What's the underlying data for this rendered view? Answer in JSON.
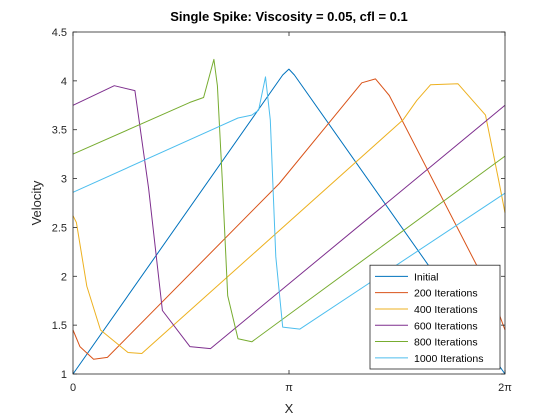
{
  "chart_data": {
    "type": "line",
    "title": "Single Spike: Viscosity = 0.05, cfl = 0.1",
    "xlabel": "X",
    "ylabel": "Velocity",
    "xlim": [
      0,
      6.2832
    ],
    "ylim": [
      1,
      4.5
    ],
    "x_ticks": [
      {
        "value": 0,
        "label": "0"
      },
      {
        "value": 3.1416,
        "label": "π"
      },
      {
        "value": 6.2832,
        "label": "2π"
      }
    ],
    "y_ticks": [
      {
        "value": 1,
        "label": "1"
      },
      {
        "value": 1.5,
        "label": "1.5"
      },
      {
        "value": 2,
        "label": "2"
      },
      {
        "value": 2.5,
        "label": "2.5"
      },
      {
        "value": 3,
        "label": "3"
      },
      {
        "value": 3.5,
        "label": "3.5"
      },
      {
        "value": 4,
        "label": "4"
      },
      {
        "value": 4.5,
        "label": "4.5"
      }
    ],
    "grid": false,
    "legend_position": "bottom-right",
    "series": [
      {
        "name": "Initial",
        "color": "#0072BD",
        "x": [
          0,
          3.05,
          3.14,
          3.22,
          6.2832
        ],
        "y": [
          1.0,
          4.06,
          4.12,
          4.06,
          1.0
        ]
      },
      {
        "name": "200 Iterations",
        "color": "#D95319",
        "x": [
          0,
          0.1,
          0.3,
          0.5,
          3.0,
          4.2,
          4.4,
          4.6,
          6.1,
          6.2832
        ],
        "y": [
          1.45,
          1.28,
          1.15,
          1.17,
          2.95,
          3.98,
          4.02,
          3.85,
          1.8,
          1.45
        ]
      },
      {
        "name": "400 Iterations",
        "color": "#EDB120",
        "x": [
          0,
          0.05,
          0.2,
          0.4,
          0.8,
          1.0,
          4.8,
          5.0,
          5.2,
          5.6,
          6.0,
          6.2,
          6.2832
        ],
        "y": [
          2.62,
          2.55,
          1.9,
          1.45,
          1.22,
          1.21,
          3.6,
          3.8,
          3.96,
          3.97,
          3.65,
          2.95,
          2.65
        ]
      },
      {
        "name": "600 Iterations",
        "color": "#7E2F8E",
        "x": [
          0,
          0.6,
          0.9,
          1.1,
          1.3,
          1.7,
          2.0,
          6.2832
        ],
        "y": [
          3.75,
          3.95,
          3.9,
          2.9,
          1.65,
          1.28,
          1.26,
          3.75
        ]
      },
      {
        "name": "800 Iterations",
        "color": "#77AC30",
        "x": [
          0,
          1.7,
          1.9,
          2.05,
          2.1,
          2.17,
          2.25,
          2.4,
          2.6,
          6.2832
        ],
        "y": [
          3.25,
          3.78,
          3.83,
          4.22,
          3.95,
          3.0,
          1.8,
          1.36,
          1.33,
          3.23
        ]
      },
      {
        "name": "1000 Iterations",
        "color": "#4DBEEE",
        "x": [
          0,
          2.4,
          2.6,
          2.7,
          2.8,
          2.87,
          2.95,
          3.05,
          3.3,
          6.2832
        ],
        "y": [
          2.86,
          3.62,
          3.65,
          3.7,
          4.04,
          3.6,
          2.2,
          1.48,
          1.46,
          2.85
        ]
      }
    ]
  }
}
